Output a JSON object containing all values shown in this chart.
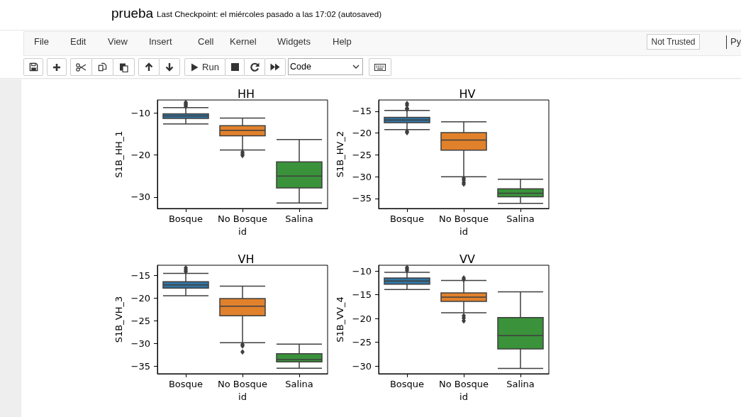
{
  "chart_data": [
    {
      "type": "other",
      "title": "prueba",
      "subtitle": "Last Checkpoint: el miércoles pasado a las 17:02 (autosaved)",
      "annotations": [
        "File",
        "Edit",
        "View",
        "Insert",
        "Cell",
        "Kernel",
        "Widgets",
        "Help",
        "Not Trusted",
        "Run",
        "Code",
        "Py"
      ]
    },
    {
      "type": "box",
      "title": "HH",
      "xlabel": "id",
      "ylabel": "S1B_HH_1",
      "categories": [
        "Bosque",
        "No Bosque",
        "Salina"
      ],
      "colors": [
        "#3274a1",
        "#e1812c",
        "#3a923a"
      ],
      "marker": "diamond",
      "ylim": [
        -32.7,
        -6.9
      ],
      "yticks": [
        {
          "value": -30,
          "label": "−30"
        },
        {
          "value": -20,
          "label": "−20"
        },
        {
          "value": -10,
          "label": "−10"
        }
      ],
      "boxes": [
        {
          "low": -12.6,
          "q1": -11.3,
          "median": -10.7,
          "q3": -10.2,
          "high": -8.7,
          "outliers": [
            -7.5,
            -7.8,
            -8.1,
            -8.4
          ]
        },
        {
          "low": -18.8,
          "q1": -15.4,
          "median": -14.1,
          "q3": -13.0,
          "high": -11.2,
          "outliers": [
            -19.3,
            -19.7,
            -20.1
          ]
        },
        {
          "low": -31.4,
          "q1": -27.8,
          "median": -25.0,
          "q3": -21.6,
          "high": -16.3
        }
      ]
    },
    {
      "type": "box",
      "title": "HV",
      "xlabel": "id",
      "ylabel": "S1B_HV_2",
      "categories": [
        "Bosque",
        "No Bosque",
        "Salina"
      ],
      "colors": [
        "#3274a1",
        "#e1812c",
        "#3a923a"
      ],
      "marker": "diamond",
      "ylim": [
        -37.3,
        -12.4
      ],
      "yticks": [
        {
          "value": -35,
          "label": "−35"
        },
        {
          "value": -30,
          "label": "−30"
        },
        {
          "value": -25,
          "label": "−25"
        },
        {
          "value": -20,
          "label": "−20"
        },
        {
          "value": -15,
          "label": "−15"
        }
      ],
      "boxes": [
        {
          "low": -19.2,
          "q1": -17.6,
          "median": -17.0,
          "q3": -16.4,
          "high": -14.8,
          "outliers": [
            -13.2,
            -13.6,
            -14.3,
            -14.5,
            -19.6,
            -19.9
          ]
        },
        {
          "low": -30.0,
          "q1": -23.9,
          "median": -21.6,
          "q3": -19.9,
          "high": -17.4,
          "outliers": [
            -30.4,
            -30.8,
            -31.3,
            -31.7
          ]
        },
        {
          "low": -36.1,
          "q1": -34.6,
          "median": -33.8,
          "q3": -32.8,
          "high": -30.6
        }
      ]
    },
    {
      "type": "box",
      "title": "VH",
      "xlabel": "id",
      "ylabel": "S1B_VH_3",
      "categories": [
        "Bosque",
        "No Bosque",
        "Salina"
      ],
      "colors": [
        "#3274a1",
        "#e1812c",
        "#3a923a"
      ],
      "marker": "diamond",
      "ylim": [
        -36.6,
        -12.8
      ],
      "yticks": [
        {
          "value": -35,
          "label": "−35"
        },
        {
          "value": -30,
          "label": "−30"
        },
        {
          "value": -25,
          "label": "−25"
        },
        {
          "value": -20,
          "label": "−20"
        },
        {
          "value": -15,
          "label": "−15"
        }
      ],
      "boxes": [
        {
          "low": -19.5,
          "q1": -17.8,
          "median": -17.1,
          "q3": -16.4,
          "high": -14.6,
          "outliers": [
            -13.4,
            -13.8,
            -14.2
          ]
        },
        {
          "low": -29.8,
          "q1": -23.9,
          "median": -21.8,
          "q3": -20.1,
          "high": -17.4,
          "outliers": [
            -30.2,
            -30.5,
            -31.8
          ]
        },
        {
          "low": -35.4,
          "q1": -34.0,
          "median": -33.5,
          "q3": -32.2,
          "high": -30.1
        }
      ]
    },
    {
      "type": "box",
      "title": "VV",
      "xlabel": "id",
      "ylabel": "S1B_VV_4",
      "categories": [
        "Bosque",
        "No Bosque",
        "Salina"
      ],
      "colors": [
        "#3274a1",
        "#e1812c",
        "#3a923a"
      ],
      "marker": "diamond",
      "ylim": [
        -31.6,
        -8.8
      ],
      "yticks": [
        {
          "value": -30,
          "label": "−30"
        },
        {
          "value": -25,
          "label": "−25"
        },
        {
          "value": -20,
          "label": "−20"
        },
        {
          "value": -15,
          "label": "−15"
        },
        {
          "value": -10,
          "label": "−10"
        }
      ],
      "boxes": [
        {
          "low": -13.9,
          "q1": -12.8,
          "median": -12.1,
          "q3": -11.5,
          "high": -10.3,
          "outliers": [
            -9.3,
            -9.6,
            -9.9
          ]
        },
        {
          "low": -18.8,
          "q1": -16.4,
          "median": -15.5,
          "q3": -14.6,
          "high": -12.0,
          "outliers": [
            -11.5,
            -11.8,
            -19.4,
            -19.9,
            -20.5
          ]
        },
        {
          "low": -30.5,
          "q1": -26.4,
          "median": -23.6,
          "q3": -19.8,
          "high": -14.4
        }
      ]
    }
  ]
}
